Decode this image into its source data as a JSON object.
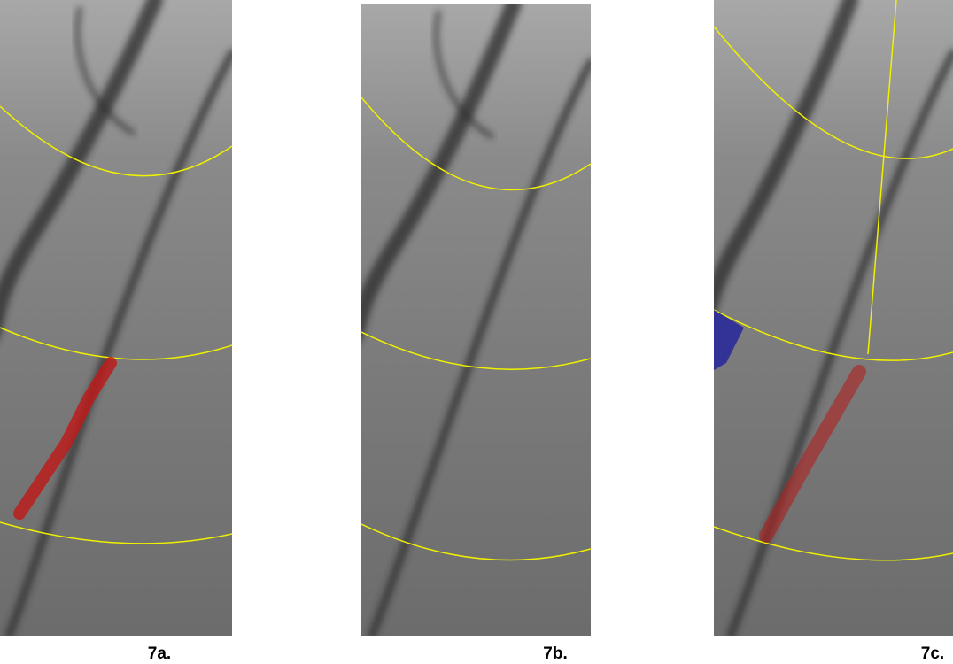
{
  "panels": [
    {
      "label": "7a."
    },
    {
      "label": "7b."
    },
    {
      "label": "7c."
    }
  ]
}
